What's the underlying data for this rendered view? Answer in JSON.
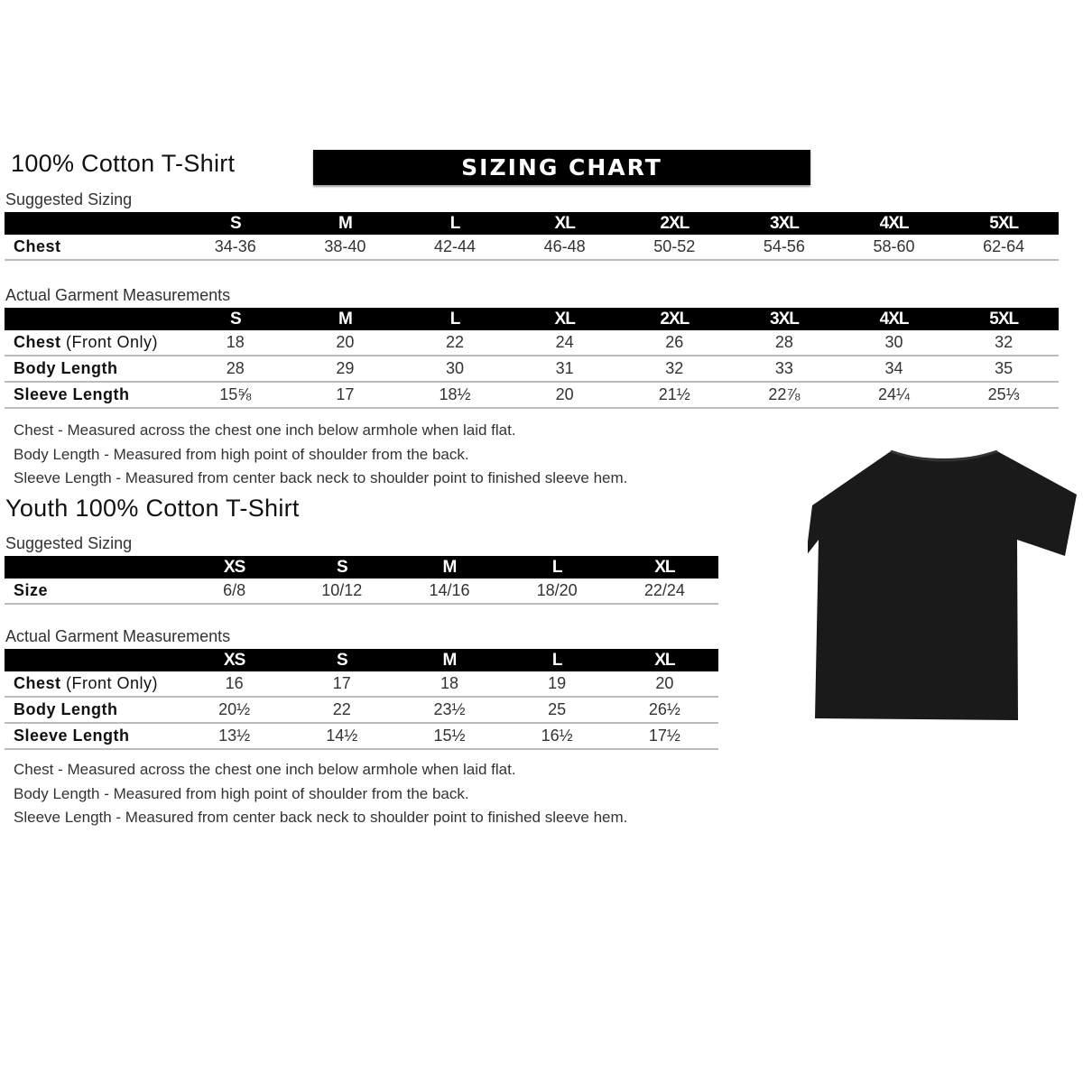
{
  "banner": "SIZING CHART",
  "adult": {
    "title": "100% Cotton T-Shirt",
    "suggested_label": "Suggested Sizing",
    "sizes": [
      "S",
      "M",
      "L",
      "XL",
      "2XL",
      "3XL",
      "4XL",
      "5XL"
    ],
    "suggested_rows": [
      {
        "label": "Chest",
        "values": [
          "34-36",
          "38-40",
          "42-44",
          "46-48",
          "50-52",
          "54-56",
          "58-60",
          "62-64"
        ]
      }
    ],
    "actual_label": "Actual Garment Measurements",
    "actual_rows": [
      {
        "label": "Chest",
        "label_note": "(Front Only)",
        "values": [
          "18",
          "20",
          "22",
          "24",
          "26",
          "28",
          "30",
          "32"
        ]
      },
      {
        "label": "Body Length",
        "values": [
          "28",
          "29",
          "30",
          "31",
          "32",
          "33",
          "34",
          "35"
        ]
      },
      {
        "label": "Sleeve Length",
        "values": [
          "15⅝",
          "17",
          "18½",
          "20",
          "21½",
          "22⅞",
          "24¼",
          "25⅓"
        ]
      }
    ],
    "notes": [
      "Chest - Measured across the chest one inch below armhole when laid flat.",
      "Body Length - Measured from high point of shoulder from the back.",
      "Sleeve Length - Measured from center back neck to shoulder point to finished sleeve hem."
    ]
  },
  "youth": {
    "title": "Youth 100% Cotton T-Shirt",
    "suggested_label": "Suggested Sizing",
    "sizes": [
      "XS",
      "S",
      "M",
      "L",
      "XL"
    ],
    "suggested_rows": [
      {
        "label": "Size",
        "values": [
          "6/8",
          "10/12",
          "14/16",
          "18/20",
          "22/24"
        ]
      }
    ],
    "actual_label": "Actual Garment Measurements",
    "actual_rows": [
      {
        "label": "Chest",
        "label_note": "(Front Only)",
        "values": [
          "16",
          "17",
          "18",
          "19",
          "20"
        ]
      },
      {
        "label": "Body Length",
        "values": [
          "20½",
          "22",
          "23½",
          "25",
          "26½"
        ]
      },
      {
        "label": "Sleeve Length",
        "values": [
          "13½",
          "14½",
          "15½",
          "16½",
          "17½"
        ]
      }
    ],
    "notes": [
      "Chest - Measured across the chest one inch below armhole when laid flat.",
      "Body Length - Measured from high point of shoulder from the back.",
      "Sleeve Length - Measured from center back neck to shoulder point to finished sleeve hem."
    ]
  },
  "colors": {
    "header": "#000000",
    "shirt": "#1a1a1a"
  }
}
